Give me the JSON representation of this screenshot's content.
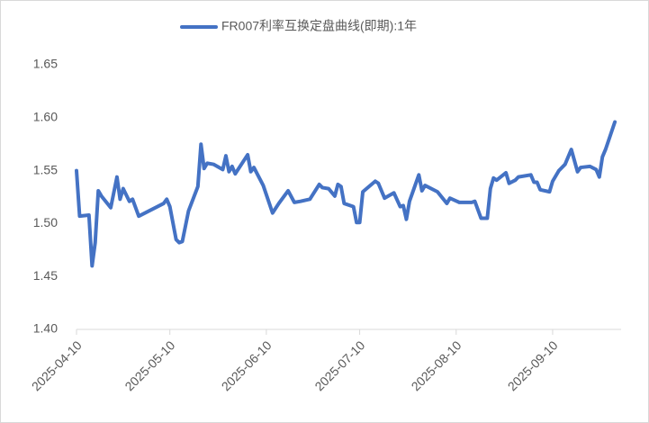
{
  "chart_data": {
    "type": "line",
    "series": [
      {
        "name": "FR007利率互换定盘曲线(即期):1年",
        "color": "#4472c4",
        "x": [
          "2025-04-10",
          "2025-04-11",
          "2025-04-14",
          "2025-04-15",
          "2025-04-16",
          "2025-04-17",
          "2025-04-18",
          "2025-04-21",
          "2025-04-23",
          "2025-04-24",
          "2025-04-25",
          "2025-04-27",
          "2025-04-28",
          "2025-04-30",
          "2025-05-08",
          "2025-05-09",
          "2025-05-10",
          "2025-05-12",
          "2025-05-13",
          "2025-05-14",
          "2025-05-16",
          "2025-05-19",
          "2025-05-20",
          "2025-05-21",
          "2025-05-22",
          "2025-05-24",
          "2025-05-27",
          "2025-05-28",
          "2025-05-29",
          "2025-05-30",
          "2025-05-31",
          "2025-06-04",
          "2025-06-05",
          "2025-06-06",
          "2025-06-09",
          "2025-06-12",
          "2025-06-14",
          "2025-06-17",
          "2025-06-19",
          "2025-06-21",
          "2025-06-24",
          "2025-06-27",
          "2025-06-28",
          "2025-06-30",
          "2025-07-02",
          "2025-07-03",
          "2025-07-04",
          "2025-07-05",
          "2025-07-08",
          "2025-07-09",
          "2025-07-10",
          "2025-07-11",
          "2025-07-15",
          "2025-07-16",
          "2025-07-18",
          "2025-07-21",
          "2025-07-23",
          "2025-07-24",
          "2025-07-25",
          "2025-07-26",
          "2025-07-29",
          "2025-07-30",
          "2025-07-31",
          "2025-08-04",
          "2025-08-07",
          "2025-08-08",
          "2025-08-11",
          "2025-08-15",
          "2025-08-16",
          "2025-08-18",
          "2025-08-20",
          "2025-08-21",
          "2025-08-22",
          "2025-08-23",
          "2025-08-26",
          "2025-08-27",
          "2025-08-29",
          "2025-08-30",
          "2025-09-03",
          "2025-09-04",
          "2025-09-05",
          "2025-09-06",
          "2025-09-09",
          "2025-09-10",
          "2025-09-12",
          "2025-09-14",
          "2025-09-16",
          "2025-09-18",
          "2025-09-19",
          "2025-09-22",
          "2025-09-24",
          "2025-09-25",
          "2025-09-26",
          "2025-09-27",
          "2025-09-30"
        ],
        "values": [
          1.55,
          1.507,
          1.508,
          1.46,
          1.482,
          1.531,
          1.526,
          1.515,
          1.544,
          1.523,
          1.533,
          1.521,
          1.523,
          1.507,
          1.519,
          1.523,
          1.516,
          1.485,
          1.482,
          1.483,
          1.512,
          1.535,
          1.575,
          1.552,
          1.557,
          1.556,
          1.551,
          1.564,
          1.549,
          1.554,
          1.547,
          1.565,
          1.549,
          1.553,
          1.536,
          1.51,
          1.519,
          1.531,
          1.52,
          1.521,
          1.523,
          1.537,
          1.534,
          1.533,
          1.526,
          1.537,
          1.535,
          1.519,
          1.516,
          1.501,
          1.501,
          1.53,
          1.54,
          1.538,
          1.524,
          1.529,
          1.516,
          1.517,
          1.504,
          1.521,
          1.546,
          1.531,
          1.536,
          1.53,
          1.519,
          1.524,
          1.52,
          1.52,
          1.521,
          1.505,
          1.505,
          1.533,
          1.543,
          1.541,
          1.548,
          1.538,
          1.541,
          1.544,
          1.546,
          1.539,
          1.539,
          1.532,
          1.53,
          1.54,
          1.55,
          1.556,
          1.57,
          1.549,
          1.553,
          1.554,
          1.551,
          1.544,
          1.563,
          1.57,
          1.596
        ]
      }
    ],
    "xlim": [
      "2025-04-10",
      "2025-10-02"
    ],
    "xticks": [
      "2025-04-10",
      "2025-05-10",
      "2025-06-10",
      "2025-07-10",
      "2025-08-10",
      "2025-09-10"
    ],
    "ylim": [
      1.4,
      1.65
    ],
    "yticks": [
      {
        "value": 1.4,
        "label": "1.40"
      },
      1.45,
      {
        "value": 1.5,
        "label": "1.50"
      },
      1.55,
      {
        "value": 1.6,
        "label": "1.60"
      },
      1.65
    ],
    "legend": "top"
  }
}
